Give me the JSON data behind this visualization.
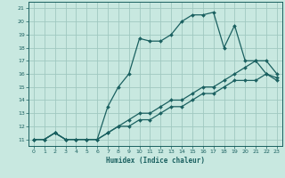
{
  "xlabel": "Humidex (Indice chaleur)",
  "bg_color": "#c8e8e0",
  "grid_color": "#a0c8c0",
  "line_color": "#1a6060",
  "xlim": [
    -0.5,
    23.5
  ],
  "ylim": [
    10.5,
    21.5
  ],
  "yticks": [
    11,
    12,
    13,
    14,
    15,
    16,
    17,
    18,
    19,
    20,
    21
  ],
  "xticks": [
    0,
    1,
    2,
    3,
    4,
    5,
    6,
    7,
    8,
    9,
    10,
    11,
    12,
    13,
    14,
    15,
    16,
    17,
    18,
    19,
    20,
    21,
    22,
    23
  ],
  "line1_x": [
    0,
    1,
    2,
    3,
    4,
    5,
    6,
    7,
    8,
    9,
    10,
    11,
    12,
    13,
    14,
    15,
    16,
    17,
    18,
    19,
    20,
    21,
    22,
    23
  ],
  "line1_y": [
    11,
    11,
    11.5,
    11,
    11,
    11,
    11,
    13.5,
    15,
    16,
    18.7,
    18.5,
    18.5,
    19,
    20.0,
    20.5,
    20.5,
    20.7,
    18.0,
    19.7,
    17.0,
    17.0,
    16.0,
    15.7
  ],
  "line2_x": [
    0,
    1,
    2,
    3,
    4,
    5,
    6,
    7,
    8,
    9,
    10,
    11,
    12,
    13,
    14,
    15,
    16,
    17,
    18,
    19,
    20,
    21,
    22,
    23
  ],
  "line2_y": [
    11,
    11,
    11.5,
    11,
    11,
    11,
    11,
    11.5,
    12,
    12.5,
    13,
    13,
    13.5,
    14,
    14,
    14.5,
    15,
    15,
    15.5,
    16,
    16.5,
    17,
    17,
    16
  ],
  "line3_x": [
    0,
    1,
    2,
    3,
    4,
    5,
    6,
    7,
    8,
    9,
    10,
    11,
    12,
    13,
    14,
    15,
    16,
    17,
    18,
    19,
    20,
    21,
    22,
    23
  ],
  "line3_y": [
    11,
    11,
    11.5,
    11,
    11,
    11,
    11,
    11.5,
    12,
    12,
    12.5,
    12.5,
    13,
    13.5,
    13.5,
    14,
    14.5,
    14.5,
    15,
    15.5,
    15.5,
    15.5,
    16,
    15.5
  ]
}
